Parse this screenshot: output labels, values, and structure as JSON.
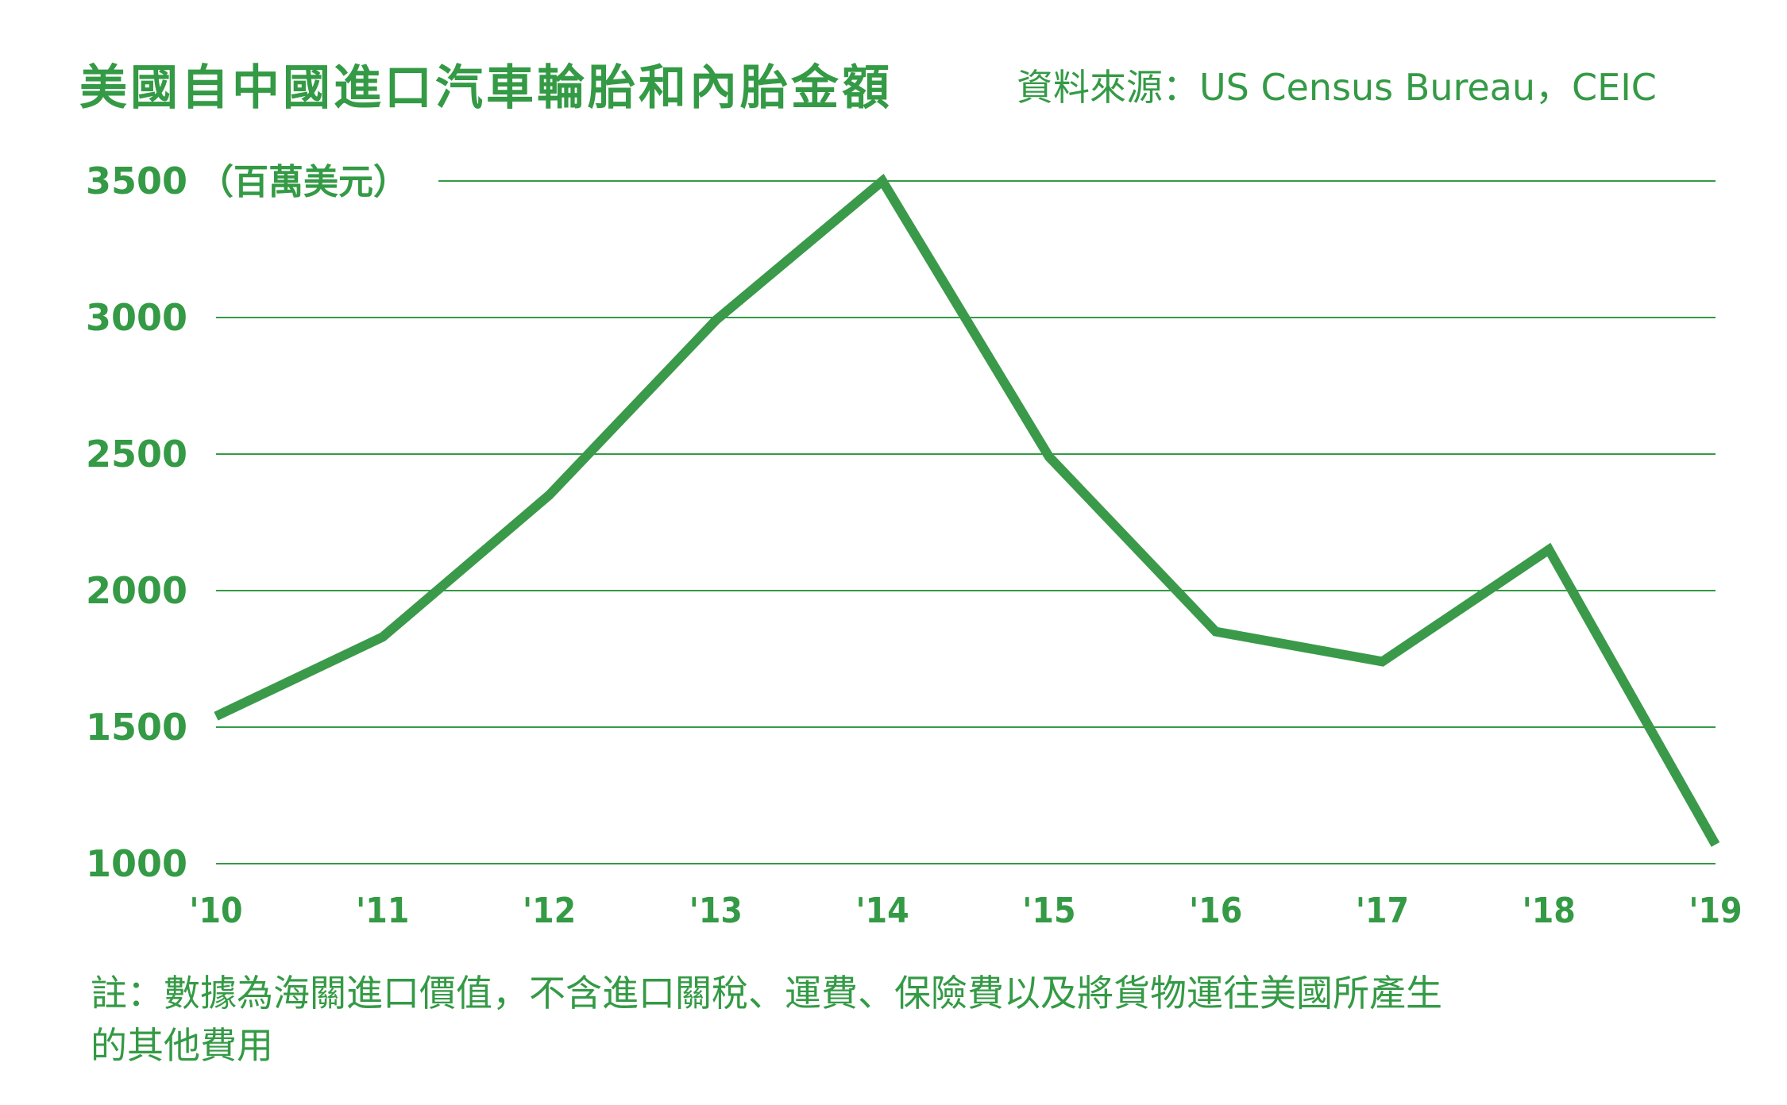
{
  "header": {
    "title": "美國自中國進口汽車輪胎和內胎金額",
    "source": "資料來源：US Census Bureau，CEIC"
  },
  "note": {
    "line1": "註：數據為海關進口價值，不含進口關稅、運費、保險費以及將貨物運往美國所產生",
    "line2": "的其他費用"
  },
  "colors": {
    "accent": "#349a45",
    "line": "#3a9a4a"
  },
  "chart_data": {
    "type": "line",
    "title": "美國自中國進口汽車輪胎和內胎金額",
    "ylabel": "（百萬美元）",
    "ylim": [
      1000,
      3500
    ],
    "yticks": [
      3500,
      3000,
      2500,
      2000,
      1500,
      1000
    ],
    "ytick_labels": [
      "3500",
      "3000",
      "2500",
      "2000",
      "1500",
      "1000"
    ],
    "categories": [
      "'10",
      "'11",
      "'12",
      "'13",
      "'14",
      "'15",
      "'16",
      "'17",
      "'18",
      "'19"
    ],
    "series": [
      {
        "values": [
          1540,
          1830,
          2350,
          2990,
          3500,
          2490,
          1850,
          1740,
          2150,
          1070
        ]
      }
    ],
    "grid": true
  }
}
